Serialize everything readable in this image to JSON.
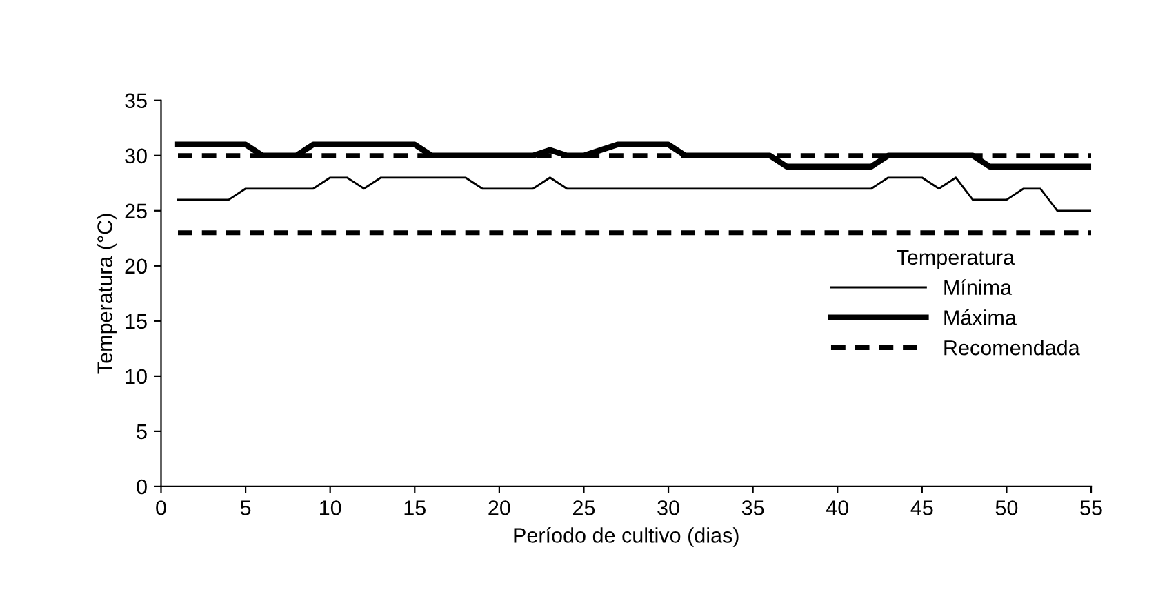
{
  "chart_data": {
    "type": "line",
    "xlabel": "Período de cultivo (dias)",
    "ylabel": "Temperatura (°C)",
    "legend_title": "Temperatura",
    "x": [
      1,
      2,
      3,
      4,
      5,
      6,
      7,
      8,
      9,
      10,
      11,
      12,
      13,
      14,
      15,
      16,
      17,
      18,
      19,
      20,
      21,
      22,
      23,
      24,
      25,
      26,
      27,
      28,
      29,
      30,
      31,
      32,
      33,
      34,
      35,
      36,
      37,
      38,
      39,
      40,
      41,
      42,
      43,
      44,
      45,
      46,
      47,
      48,
      49,
      50,
      51,
      52,
      53,
      54,
      55
    ],
    "series": [
      {
        "name": "Mínima",
        "color": "#000000",
        "values": [
          26,
          26,
          26,
          26,
          27,
          27,
          27,
          27,
          27,
          28,
          28,
          27,
          28,
          28,
          28,
          28,
          28,
          28,
          27,
          27,
          27,
          27,
          28,
          27,
          27,
          27,
          27,
          27,
          27,
          27,
          27,
          27,
          27,
          27,
          27,
          27,
          27,
          27,
          27,
          27,
          27,
          27,
          28,
          28,
          28,
          27,
          28,
          26,
          26,
          26,
          27,
          27,
          25,
          25,
          25
        ]
      },
      {
        "name": "Máxima",
        "color": "#000000",
        "values": [
          31,
          31,
          31,
          31,
          31,
          30,
          30,
          30,
          31,
          31,
          31,
          31,
          31,
          31,
          31,
          30,
          30,
          30,
          30,
          30,
          30,
          30,
          30.5,
          30,
          30,
          30.5,
          31,
          31,
          31,
          31,
          30,
          30,
          30,
          30,
          30,
          30,
          29,
          29,
          29,
          29,
          29,
          29,
          30,
          30,
          30,
          30,
          30,
          30,
          29,
          29,
          29,
          29,
          29,
          29,
          29
        ]
      }
    ],
    "ref_lines": [
      {
        "axis": "y",
        "value": 30,
        "label": "Recomendada",
        "color": "#000000",
        "line_style": "dashed"
      },
      {
        "axis": "y",
        "value": 23,
        "color": "#000000",
        "line_style": "dashed"
      }
    ],
    "xlim": [
      0,
      55
    ],
    "xticks": [
      0,
      5,
      10,
      15,
      20,
      25,
      30,
      35,
      40,
      45,
      50,
      55
    ],
    "ylim": [
      0,
      35
    ],
    "yticks": [
      0,
      5,
      10,
      15,
      20,
      25,
      30,
      35
    ],
    "grid": false,
    "legend": "right",
    "marker": "none",
    "line_style": "solid"
  }
}
